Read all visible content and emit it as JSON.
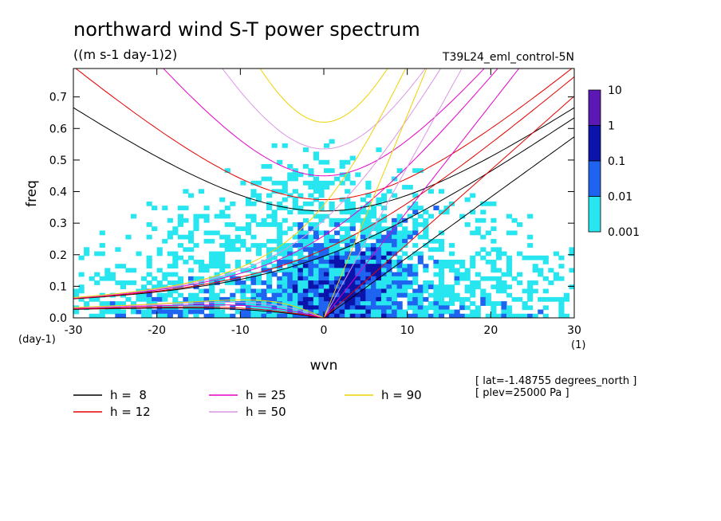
{
  "chart_data": {
    "type": "heatmap",
    "title": "northward wind S-T power spectrum",
    "subtitle": "((m s-1 day-1)2)",
    "experiment": "T39L24_eml_control-5N",
    "xlabel": "wvn",
    "ylabel": "freq",
    "x_unit": "(1)",
    "y_unit": "(day-1)",
    "xlim": [
      -30,
      30
    ],
    "ylim": [
      0,
      0.79
    ],
    "x_ticks": [
      -30,
      -20,
      -10,
      0,
      10,
      20,
      30
    ],
    "x_tick_labels": [
      "-30",
      "-20",
      "-10",
      "0",
      "10",
      "20",
      "30"
    ],
    "y_ticks": [
      0.0,
      0.1,
      0.2,
      0.3,
      0.4,
      0.5,
      0.6,
      0.7
    ],
    "y_tick_labels": [
      "0.0",
      "0.1",
      "0.2",
      "0.3",
      "0.4",
      "0.5",
      "0.6",
      "0.7"
    ],
    "colorbar": {
      "levels": [
        "10",
        "1",
        "0.1",
        "0.01",
        "0.001"
      ],
      "colors": [
        "#5b18b4",
        "#0a14aa",
        "#1e64f0",
        "#28e6f0"
      ]
    },
    "dispersion_curves": [
      {
        "label": "h =  8",
        "h": 8,
        "color": "#000000"
      },
      {
        "label": "h = 12",
        "h": 12,
        "color": "#e60000"
      },
      {
        "label": "h = 25",
        "h": 25,
        "color": "#e600c8"
      },
      {
        "label": "h = 50",
        "h": 50,
        "color": "#dc96e6"
      },
      {
        "label": "h = 90",
        "h": 90,
        "color": "#f0d200"
      }
    ],
    "info_lines": [
      "[ lat=-1.48755 degrees_north ]",
      "[ plev=25000 Pa ]"
    ]
  }
}
